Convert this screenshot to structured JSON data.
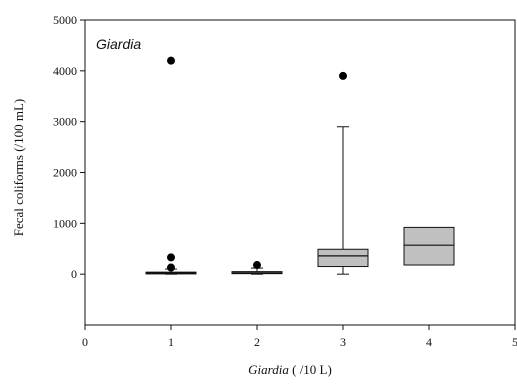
{
  "chart_data": {
    "type": "box",
    "title": "",
    "panel_label": "Giardia",
    "xlabel": {
      "italic": "Giardia",
      "rest": " ( /10 L)"
    },
    "ylabel": "Fecal coliforms (/100 mL)",
    "xlim": [
      0,
      5
    ],
    "ylim": [
      -1000,
      5000
    ],
    "xticks": [
      "0",
      "1",
      "2",
      "3",
      "4",
      "5"
    ],
    "yticks": [
      "0",
      "1000",
      "2000",
      "3000",
      "4000",
      "5000"
    ],
    "box_fill": "#c0c0c0",
    "boxes": [
      {
        "x": 1,
        "q1": 5,
        "median": 20,
        "q3": 40,
        "whisker_low": 0,
        "whisker_high": 100,
        "outliers": [
          4200,
          330,
          130
        ]
      },
      {
        "x": 2,
        "q1": 10,
        "median": 25,
        "q3": 50,
        "whisker_low": 0,
        "whisker_high": 120,
        "outliers": [
          180
        ]
      },
      {
        "x": 3,
        "q1": 150,
        "median": 360,
        "q3": 490,
        "whisker_low": 0,
        "whisker_high": 2900,
        "outliers": [
          3900
        ]
      },
      {
        "x": 4,
        "q1": 180,
        "median": 570,
        "q3": 920,
        "whisker_low": null,
        "whisker_high": null,
        "outliers": []
      }
    ]
  }
}
